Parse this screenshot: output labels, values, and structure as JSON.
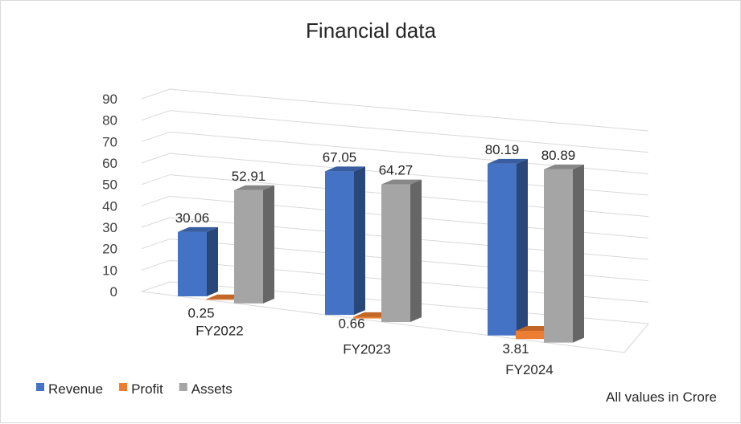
{
  "chart_data": {
    "type": "bar",
    "variant": "3d-clustered-column",
    "title": "Financial data",
    "categories": [
      "FY2022",
      "FY2023",
      "FY2024"
    ],
    "series": [
      {
        "name": "Revenue",
        "values": [
          30.06,
          67.05,
          80.19
        ],
        "color": "#4472c4"
      },
      {
        "name": "Profit",
        "values": [
          0.25,
          0.66,
          3.81
        ],
        "color": "#ed7d31"
      },
      {
        "name": "Assets",
        "values": [
          52.91,
          64.27,
          80.89
        ],
        "color": "#a5a5a5"
      }
    ],
    "data_labels": [
      [
        "30.06",
        "67.05",
        "80.19"
      ],
      [
        "0.25",
        "0.66",
        "3.81"
      ],
      [
        "52.91",
        "64.27",
        "80.89"
      ]
    ],
    "ylim": [
      0,
      90
    ],
    "yticks": [
      "0",
      "10",
      "20",
      "30",
      "40",
      "50",
      "60",
      "70",
      "80",
      "90"
    ],
    "grid": true,
    "legend_position": "bottom-left",
    "note": "All values in Crore"
  }
}
